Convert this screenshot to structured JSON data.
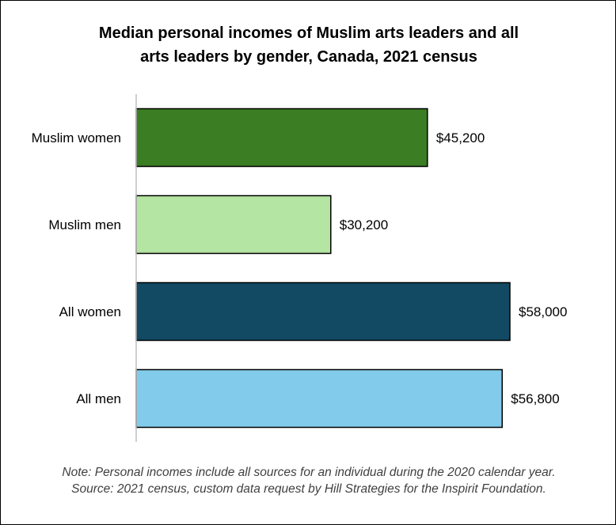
{
  "chart_data": {
    "type": "bar",
    "orientation": "horizontal",
    "title_lines": [
      "Median personal incomes of Muslim arts leaders and all",
      "arts leaders by gender, Canada, 2021 census"
    ],
    "categories": [
      "Muslim women",
      "Muslim men",
      "All women",
      "All men"
    ],
    "values": [
      45200,
      30200,
      58000,
      56800
    ],
    "value_labels": [
      "$45,200",
      "$30,200",
      "$58,000",
      "$56,800"
    ],
    "colors": [
      "#3b7d23",
      "#b4e5a2",
      "#124a63",
      "#83cbeb"
    ],
    "xlim": [
      0,
      70000
    ],
    "grid": false,
    "legend": "none"
  },
  "note": {
    "line1": "Note: Personal incomes include all sources for an individual during the 2020 calendar year.",
    "line2": "Source: 2021 census, custom data request by Hill Strategies for the Inspirit Foundation."
  }
}
